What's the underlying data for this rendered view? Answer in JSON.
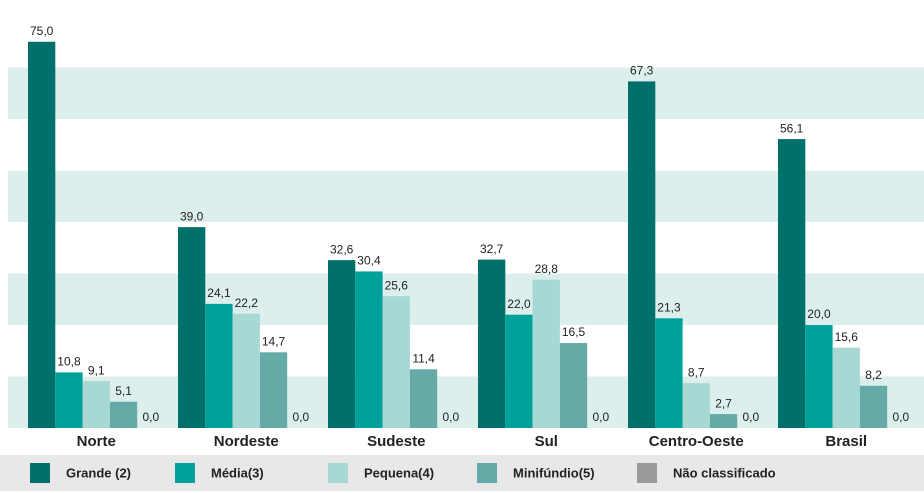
{
  "chart_data": {
    "type": "bar",
    "categories": [
      "Norte",
      "Nordeste",
      "Sudeste",
      "Sul",
      "Centro-Oeste",
      "Brasil"
    ],
    "series": [
      {
        "name": "Grande (2)",
        "color": "#00706b",
        "values": [
          75.0,
          39.0,
          32.6,
          32.7,
          67.3,
          56.1
        ],
        "value_labels": [
          "75,0",
          "39,0",
          "32,6",
          "32,7",
          "67,3",
          "56,1"
        ]
      },
      {
        "name": "Média(3)",
        "color": "#00a19a",
        "values": [
          10.8,
          24.1,
          30.4,
          22.0,
          21.3,
          20.0
        ],
        "value_labels": [
          "10,8",
          "24,1",
          "30,4",
          "22,0",
          "21,3",
          "20,0"
        ]
      },
      {
        "name": "Pequena(4)",
        "color": "#a8d8d4",
        "values": [
          9.1,
          22.2,
          25.6,
          28.8,
          8.7,
          15.6
        ],
        "value_labels": [
          "9,1",
          "22,2",
          "25,6",
          "28,8",
          "8,7",
          "15,6"
        ]
      },
      {
        "name": "Minifúndio(5)",
        "color": "#66aaa8",
        "values": [
          5.1,
          14.7,
          11.4,
          16.5,
          2.7,
          8.2
        ],
        "value_labels": [
          "5,1",
          "14,7",
          "11,4",
          "16,5",
          "2,7",
          "8,2"
        ]
      },
      {
        "name": "Não classificado",
        "color": "#999999",
        "values": [
          0.0,
          0.0,
          0.0,
          0.0,
          0.0,
          0.0
        ],
        "value_labels": [
          "0,0",
          "0,0",
          "0,0",
          "0,0",
          "0,0",
          "0,0"
        ]
      }
    ],
    "ylim": [
      0,
      80
    ],
    "yticks": [
      0,
      10,
      20,
      30,
      40,
      50,
      60,
      70,
      80
    ],
    "grid": true
  }
}
